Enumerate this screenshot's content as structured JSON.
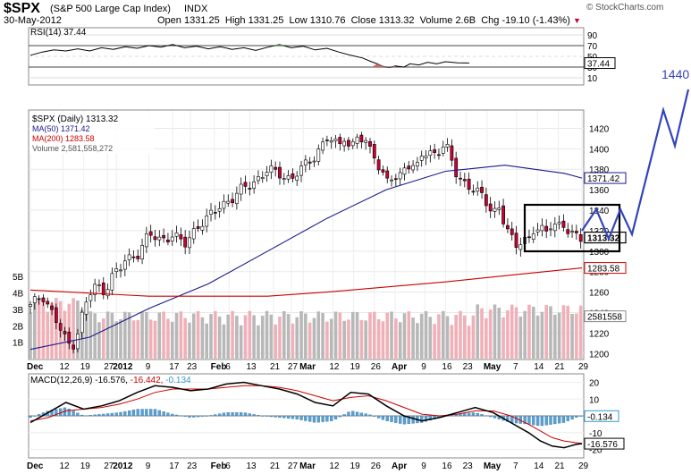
{
  "header": {
    "symbol": "$SPX",
    "name": "(S&P 500 Large Cap Index)",
    "exchange": "INDX",
    "date": "30-May-2012",
    "open_label": "Open",
    "open": "1331.25",
    "high_label": "High",
    "high": "1331.25",
    "low_label": "Low",
    "low": "1310.76",
    "close_label": "Close",
    "close": "1313.32",
    "volume_label": "Volume",
    "volume": "2.6B",
    "chg_label": "Chg",
    "chg": "-19.10 (-1.43%)",
    "watermark": "© StockCharts.com",
    "down_color": "#cc0033",
    "link_color": "#0000cc"
  },
  "chart_data": [
    {
      "type": "line",
      "id": "rsi",
      "legend": "RSI(14) 37.44",
      "ylim": [
        0,
        100
      ],
      "ticks": [
        "90",
        "70",
        "50",
        "30",
        "10"
      ],
      "tick_values": [
        90,
        70,
        50,
        30,
        10
      ],
      "current_label": "37.44",
      "current_value": 37.44,
      "x_days": [
        0,
        4,
        8,
        12,
        16,
        20,
        24,
        28,
        32,
        36,
        40,
        44,
        48,
        52,
        56,
        60,
        64,
        68,
        72,
        76,
        80,
        84,
        88,
        92,
        96,
        100,
        104,
        108,
        112,
        115,
        117,
        119,
        121,
        123,
        126,
        128,
        131,
        134,
        137,
        140,
        144,
        148
      ],
      "values": [
        52,
        58,
        62,
        60,
        64,
        60,
        66,
        63,
        68,
        65,
        70,
        67,
        72,
        66,
        69,
        64,
        68,
        63,
        66,
        61,
        67,
        72,
        66,
        69,
        62,
        65,
        58,
        52,
        47,
        40,
        36,
        31,
        29,
        32,
        30,
        36,
        34,
        39,
        36,
        40,
        38,
        37.44
      ]
    },
    {
      "type": "candlestick",
      "id": "price",
      "legend_symbol": "$SPX (Daily) 1313.32",
      "legend_ma50": "MA(50) 1371.42",
      "legend_ma200": "MA(200) 1283.58",
      "legend_volume": "Volume 2,581,558,272",
      "ylim": [
        1195,
        1437
      ],
      "ticks": [
        "1420",
        "1400",
        "1380",
        "1360",
        "1340",
        "1320",
        "1300",
        "1280",
        "1260",
        "1240",
        "1220",
        "1200"
      ],
      "tick_values": [
        1420,
        1400,
        1380,
        1360,
        1340,
        1320,
        1300,
        1280,
        1260,
        1240,
        1220,
        1200
      ],
      "x_labels": [
        "Dec",
        "12",
        "19",
        "27",
        "2012",
        "9",
        "17",
        "23",
        "Feb",
        "6",
        "13",
        "21",
        "27",
        "Mar",
        "12",
        "19",
        "26",
        "Apr",
        "9",
        "16",
        "23",
        "May",
        "7",
        "14",
        "21",
        "29"
      ],
      "x_label_days": [
        0,
        11,
        18,
        26,
        29,
        40,
        48,
        54,
        62,
        67,
        74,
        82,
        88,
        92,
        102,
        109,
        116,
        123,
        133,
        140,
        147,
        154,
        164,
        171,
        178,
        186
      ],
      "current_label": "1313.32",
      "ma50_label": "1371.42",
      "ma200_label": "1283.58",
      "close_anchor_days": [
        0,
        4,
        8,
        12,
        14,
        16,
        18,
        20,
        22,
        25,
        28,
        30,
        32,
        36,
        40,
        44,
        48,
        52,
        56,
        60,
        64,
        68,
        72,
        76,
        80,
        84,
        88,
        92,
        96,
        100,
        104,
        106,
        108,
        110,
        113,
        116,
        118,
        120,
        122,
        124,
        126,
        128,
        130,
        132,
        136,
        140,
        144,
        148,
        152,
        156,
        158,
        160,
        162,
        164,
        166,
        168,
        170,
        172,
        174,
        176,
        178,
        180,
        182,
        184,
        186
      ],
      "close_anchor_values": [
        1246,
        1258,
        1236,
        1212,
        1206,
        1222,
        1243,
        1258,
        1266,
        1261,
        1278,
        1281,
        1291,
        1297,
        1316,
        1311,
        1316,
        1306,
        1324,
        1332,
        1345,
        1351,
        1362,
        1369,
        1379,
        1376,
        1370,
        1382,
        1394,
        1410,
        1403,
        1414,
        1398,
        1412,
        1405,
        1396,
        1378,
        1368,
        1372,
        1368,
        1384,
        1386,
        1378,
        1394,
        1396,
        1404,
        1372,
        1364,
        1354,
        1338,
        1344,
        1326,
        1312,
        1304,
        1314,
        1311,
        1322,
        1320,
        1318,
        1330,
        1326,
        1324,
        1316,
        1314,
        1313.32
      ],
      "ma50_days": [
        0,
        20,
        40,
        60,
        80,
        100,
        120,
        140,
        160,
        180,
        186
      ],
      "ma50_values": [
        1204,
        1216,
        1244,
        1268,
        1300,
        1332,
        1360,
        1378,
        1384,
        1376,
        1371.42
      ],
      "ma200_days": [
        0,
        40,
        80,
        100,
        140,
        160,
        186
      ],
      "ma200_values": [
        1262,
        1256,
        1256,
        1260,
        1270,
        1276,
        1283.58
      ],
      "volume_ticks": [
        "5B",
        "4B",
        "3B",
        "2B",
        "1B"
      ],
      "volume_tick_values": [
        5,
        4,
        3,
        2,
        1
      ],
      "volume_ylim": [
        0,
        5.5
      ],
      "volume_current_label": "2581558",
      "projection_label": "1440",
      "projection_points": [
        [
          1300,
          1350,
          1310,
          1375,
          1320,
          1395,
          1350,
          1420,
          1375,
          1435
        ],
        [
          0,
          0,
          0,
          0,
          0,
          0,
          0,
          0,
          0,
          0
        ]
      ]
    },
    {
      "type": "line",
      "id": "macd",
      "legend_main": "MACD(12,26,9) -16.576,",
      "legend_signal": "-16.442,",
      "legend_hist": "-0.134",
      "ylim": [
        -24,
        24
      ],
      "ticks": [
        "20",
        "10",
        "0",
        "-10",
        "-20"
      ],
      "tick_values": [
        20,
        10,
        0,
        -10,
        -20
      ],
      "current_hist_label": "-0.134",
      "current_macd_label": "-16.576",
      "x_days": [
        0,
        6,
        12,
        18,
        24,
        30,
        36,
        42,
        48,
        54,
        60,
        66,
        72,
        78,
        84,
        90,
        96,
        102,
        108,
        114,
        120,
        126,
        132,
        138,
        144,
        150,
        156,
        162,
        168,
        172,
        176,
        180,
        184,
        186
      ],
      "macd": [
        -4,
        2,
        8,
        4,
        6,
        9,
        14,
        18,
        17,
        15,
        16,
        19,
        20,
        18,
        16,
        13,
        8,
        6,
        14,
        13,
        6,
        0,
        -3,
        -1,
        2,
        5,
        2,
        -4,
        -10,
        -15,
        -18,
        -19,
        -17,
        -16.576
      ],
      "signal": [
        -3,
        -1,
        3,
        4,
        5,
        7,
        10,
        14,
        16,
        16,
        16,
        17,
        18,
        18,
        17,
        15,
        12,
        9,
        11,
        12,
        9,
        5,
        1,
        0,
        1,
        3,
        3,
        0,
        -5,
        -9,
        -13,
        -15,
        -16,
        -16.442
      ]
    }
  ]
}
